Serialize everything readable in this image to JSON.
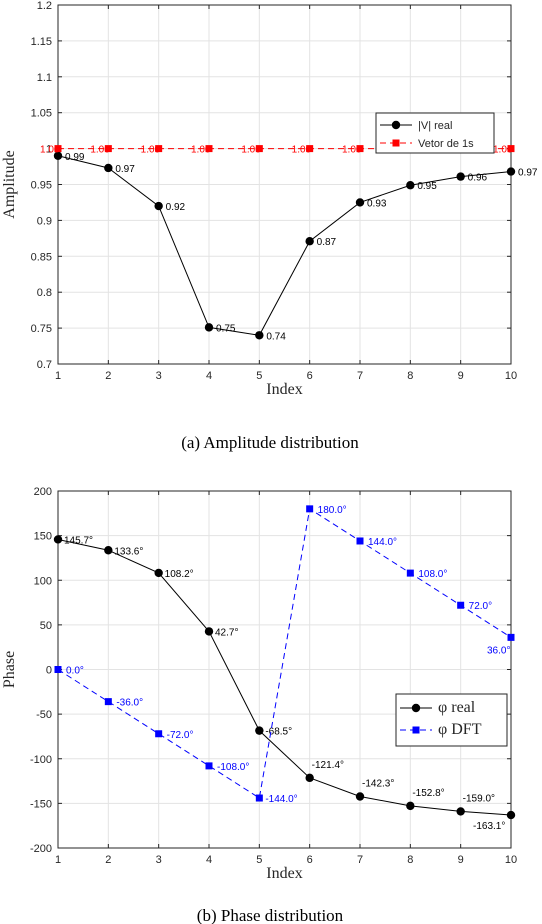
{
  "chart_data": [
    {
      "type": "line",
      "caption": "(a)  Amplitude distribution",
      "xlabel": "Index",
      "ylabel": "Amplitude",
      "x": [
        1,
        2,
        3,
        4,
        5,
        6,
        7,
        8,
        9,
        10
      ],
      "xlim": [
        1,
        10
      ],
      "ylim": [
        0.7,
        1.2
      ],
      "yticks": [
        "0.7",
        "0.75",
        "0.8",
        "0.85",
        "0.9",
        "0.95",
        "1",
        "1.05",
        "1.1",
        "1.15",
        "1.2"
      ],
      "ytick_values": [
        0.7,
        0.75,
        0.8,
        0.85,
        0.9,
        0.95,
        1,
        1.05,
        1.1,
        1.15,
        1.2
      ],
      "grid": true,
      "legend_position": "upper-right-inside",
      "series": [
        {
          "name": "|V| real",
          "color": "#000000",
          "marker": "circle",
          "line": "solid",
          "values": [
            0.99,
            0.973,
            0.92,
            0.751,
            0.74,
            0.871,
            0.925,
            0.949,
            0.961,
            0.968
          ],
          "labels": [
            "0.99",
            "0.97",
            "0.92",
            "0.75",
            "0.74",
            "0.87",
            "0.93",
            "0.95",
            "0.96",
            "0.97"
          ]
        },
        {
          "name": "Vetor de 1s",
          "color": "#ff0000",
          "marker": "square",
          "line": "dashed",
          "values": [
            1,
            1,
            1,
            1,
            1,
            1,
            1,
            1,
            1,
            1
          ],
          "labels": [
            "1.00",
            "1.00",
            "1.00",
            "1.00",
            "1.00",
            "1.00",
            "1.00",
            "1.00",
            "1.00",
            "1.00"
          ]
        }
      ]
    },
    {
      "type": "line",
      "caption": "(b)  Phase distribution",
      "xlabel": "Index",
      "ylabel": "Phase",
      "x": [
        1,
        2,
        3,
        4,
        5,
        6,
        7,
        8,
        9,
        10
      ],
      "xlim": [
        1,
        10
      ],
      "ylim": [
        -200,
        200
      ],
      "yticks": [
        "-200",
        "-150",
        "-100",
        "-50",
        "0",
        "50",
        "100",
        "150",
        "200"
      ],
      "ytick_values": [
        -200,
        -150,
        -100,
        -50,
        0,
        50,
        100,
        150,
        200
      ],
      "grid": true,
      "legend_position": "lower-right-inside",
      "series": [
        {
          "name": "φ real",
          "color": "#000000",
          "marker": "circle",
          "line": "solid",
          "values": [
            145.7,
            133.6,
            108.2,
            42.7,
            -68.5,
            -121.4,
            -142.3,
            -152.8,
            -159.0,
            -163.1
          ],
          "labels": [
            "145.7°",
            "133.6°",
            "108.2°",
            "42.7°",
            "-68.5°",
            "-121.4°",
            "-142.3°",
            "-152.8°",
            "-159.0°",
            "-163.1°"
          ]
        },
        {
          "name": "φ DFT",
          "color": "#0000ff",
          "marker": "square",
          "line": "dashed",
          "values": [
            0,
            -36,
            -72,
            -108,
            -144,
            180,
            144,
            108,
            72,
            36
          ],
          "labels": [
            "0.0°",
            "-36.0°",
            "-72.0°",
            "-108.0°",
            "-144.0°",
            "180.0°",
            "144.0°",
            "108.0°",
            "72.0°",
            "36.0°"
          ]
        }
      ]
    }
  ]
}
